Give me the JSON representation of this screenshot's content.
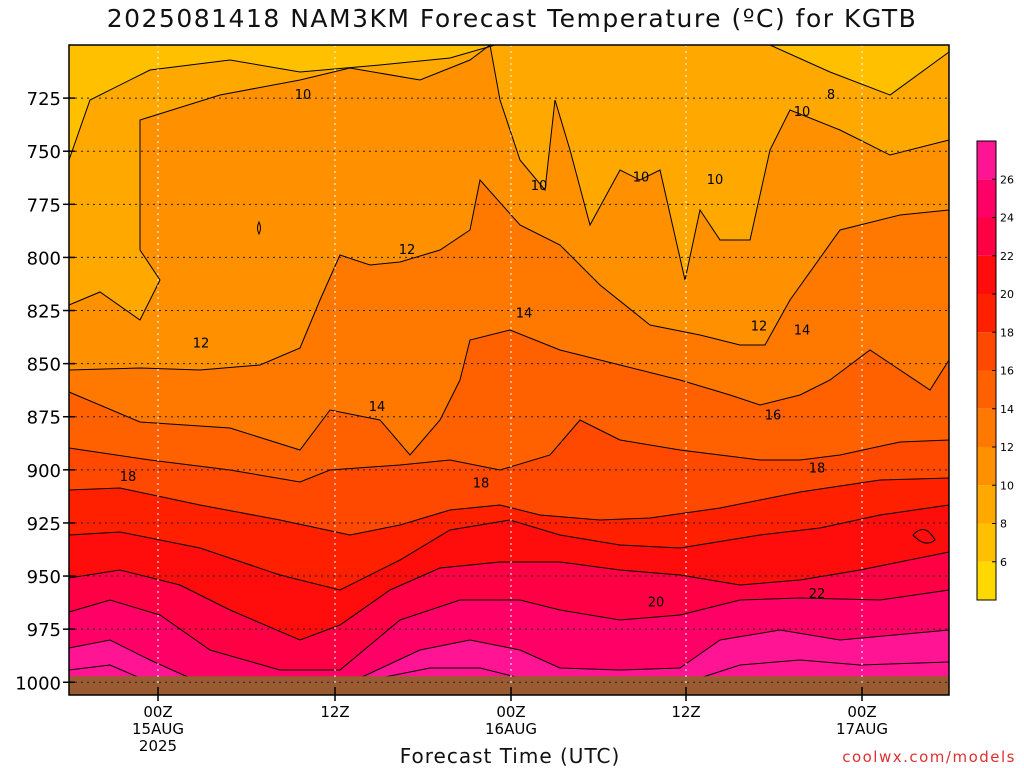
{
  "title": "2025081418 NAM3KM Forecast Temperature (ºC) for KGTB",
  "credit": "coolwx.com/models",
  "chart_data": {
    "type": "heatmap",
    "xlabel": "Forecast Time (UTC)",
    "ylabel": "",
    "y_axis": {
      "ticks": [
        725,
        750,
        775,
        800,
        825,
        850,
        875,
        900,
        925,
        950,
        975,
        1000
      ],
      "range": [
        1000,
        700
      ],
      "inverted": true
    },
    "x_axis": {
      "ticks": [
        {
          "line1": "00Z",
          "line2": "15AUG",
          "line3": "2025"
        },
        {
          "line1": "12Z",
          "line2": "",
          "line3": ""
        },
        {
          "line1": "00Z",
          "line2": "16AUG",
          "line3": ""
        },
        {
          "line1": "12Z",
          "line2": "",
          "line3": ""
        },
        {
          "line1": "00Z",
          "line2": "17AUG",
          "line3": ""
        }
      ]
    },
    "grid": true,
    "colorbar": {
      "levels": [
        4,
        6,
        8,
        10,
        12,
        14,
        16,
        18,
        20,
        22,
        24,
        26,
        28
      ],
      "tick_labels": [
        6,
        8,
        10,
        12,
        14,
        16,
        18,
        20,
        22,
        24,
        26
      ],
      "colors": [
        "#ffd800",
        "#ffc000",
        "#ffa800",
        "#ff9000",
        "#ff7800",
        "#ff6000",
        "#ff4800",
        "#ff2000",
        "#ff0c0c",
        "#ff0044",
        "#ff0066",
        "#ff1493"
      ]
    },
    "contour_labels": [
      {
        "value": "10",
        "p": 723
      },
      {
        "value": "8",
        "p": 723
      },
      {
        "value": "10",
        "p": 731
      },
      {
        "value": "10",
        "p": 766
      },
      {
        "value": "10",
        "p": 762
      },
      {
        "value": "10",
        "p": 763
      },
      {
        "value": "12",
        "p": 796
      },
      {
        "value": "14",
        "p": 826
      },
      {
        "value": "12",
        "p": 840
      },
      {
        "value": "12",
        "p": 832
      },
      {
        "value": "14",
        "p": 834
      },
      {
        "value": "14",
        "p": 870
      },
      {
        "value": "16",
        "p": 874
      },
      {
        "value": "18",
        "p": 903
      },
      {
        "value": "18",
        "p": 906
      },
      {
        "value": "18",
        "p": 899
      },
      {
        "value": "20",
        "p": 962
      },
      {
        "value": "22",
        "p": 958
      }
    ],
    "ground_color": "#9a5a32"
  }
}
